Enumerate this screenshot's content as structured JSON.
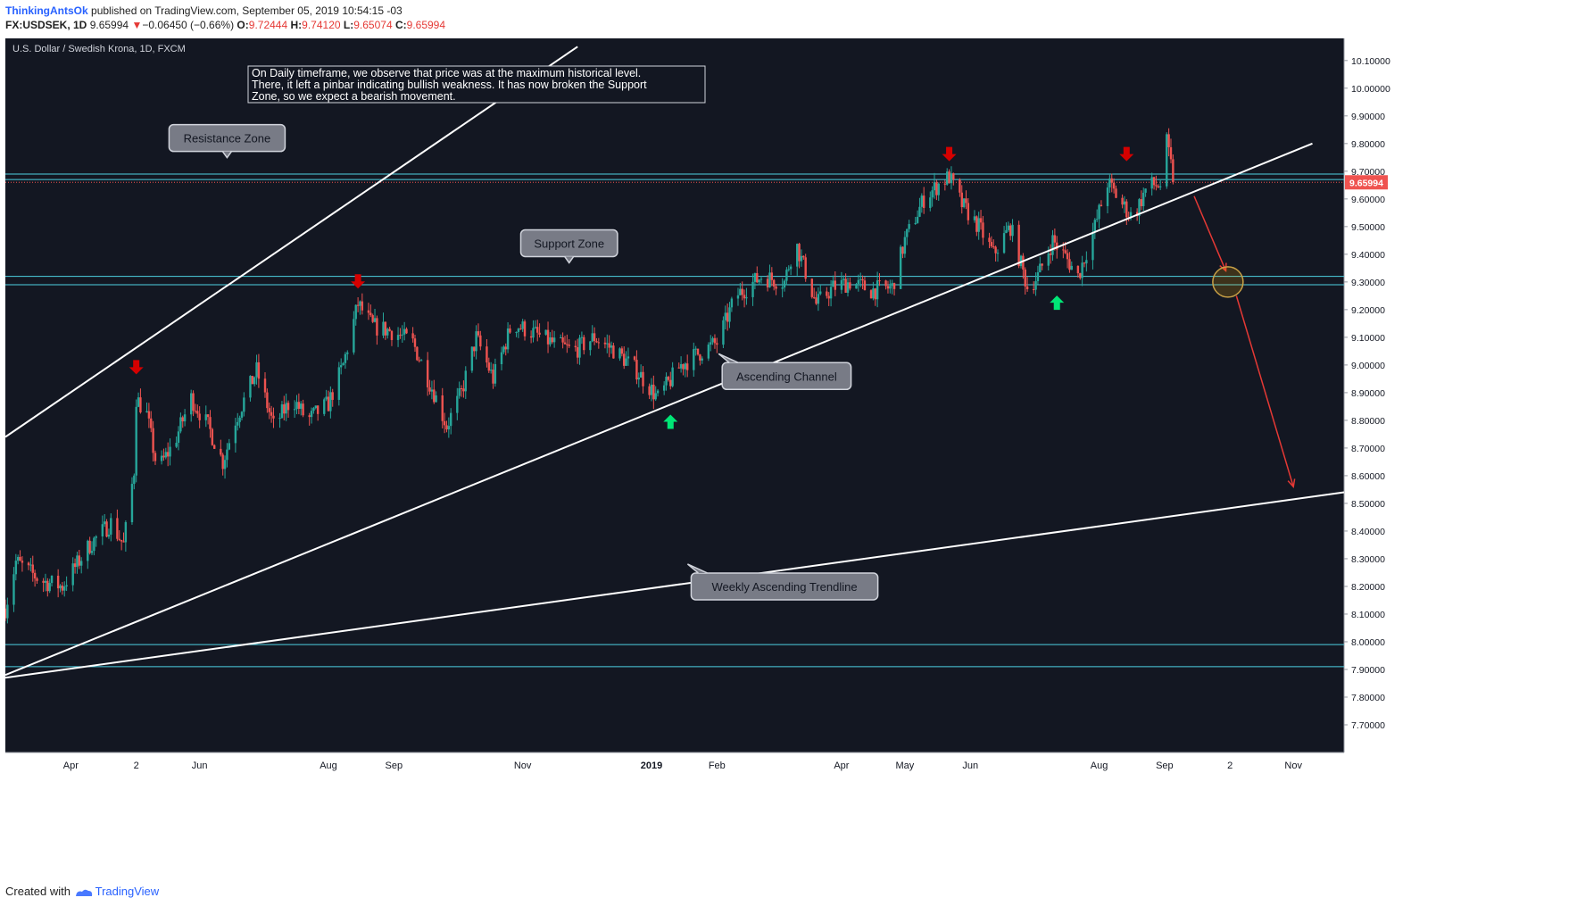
{
  "header": {
    "author": "ThinkingAntsOk",
    "published": "published on TradingView.com, September 05, 2019 10:54:15 -03",
    "symbol": "FX:USDSEK, 1D",
    "last": "9.65994",
    "change_arrow": "▼",
    "change": "−0.06450 (−0.66%)",
    "o_label": "O:",
    "o_val": "9.72444",
    "h_label": "H:",
    "h_val": "9.74120",
    "l_label": "L:",
    "l_val": "9.65074",
    "c_label": "C:",
    "c_val": "9.65994"
  },
  "footer": {
    "created_with": "Created with",
    "brand": "TradingView"
  },
  "colors": {
    "background": "#131722",
    "bull": "#26a69a",
    "bear": "#ef5350",
    "zone_line": "#4dd0e1",
    "channel_line": "#ffffff",
    "down_arrow": "#d50000",
    "up_arrow": "#00e676",
    "price_tag": "#ef5350"
  },
  "chart_data": {
    "type": "candlestick",
    "instrument_title": "U.S. Dollar / Swedish Krona, 1D, FXCM",
    "note": "On Daily timeframe, we observe that price was at the maximum historical level. There, it left a pinbar indicating bullish weakness. It has now broken the Support Zone, so we expect a bearish movement.",
    "note_lines": [
      "On Daily timeframe, we observe that price was at the maximum historical level.",
      "There, it left a pinbar indicating bullish weakness. It has now broken the Support",
      "Zone, so we expect a bearish movement."
    ],
    "ylim": [
      7.6,
      10.18
    ],
    "y_ticks": [
      "10.10000",
      "10.00000",
      "9.90000",
      "9.80000",
      "9.70000",
      "9.60000",
      "9.50000",
      "9.40000",
      "9.30000",
      "9.20000",
      "9.10000",
      "9.00000",
      "8.90000",
      "8.80000",
      "8.70000",
      "8.60000",
      "8.50000",
      "8.40000",
      "8.30000",
      "8.20000",
      "8.10000",
      "8.00000",
      "7.90000",
      "7.80000",
      "7.70000"
    ],
    "x_start": "2018-03-01",
    "x_end": "2019-11-25",
    "x_ticks": [
      {
        "label": "Apr",
        "date": "2018-04-01"
      },
      {
        "label": "2",
        "date": "2018-05-02"
      },
      {
        "label": "Jun",
        "date": "2018-06-01"
      },
      {
        "label": "Aug",
        "date": "2018-08-01"
      },
      {
        "label": "Sep",
        "date": "2018-09-01"
      },
      {
        "label": "Nov",
        "date": "2018-11-01"
      },
      {
        "label": "2019",
        "date": "2019-01-01"
      },
      {
        "label": "Feb",
        "date": "2019-02-01"
      },
      {
        "label": "Apr",
        "date": "2019-04-01"
      },
      {
        "label": "May",
        "date": "2019-05-01"
      },
      {
        "label": "Jun",
        "date": "2019-06-01"
      },
      {
        "label": "Aug",
        "date": "2019-08-01"
      },
      {
        "label": "Sep",
        "date": "2019-09-01"
      },
      {
        "label": "2",
        "date": "2019-10-02"
      },
      {
        "label": "Nov",
        "date": "2019-11-01"
      }
    ],
    "price_path": [
      {
        "date": "2018-03-01",
        "price": 8.12
      },
      {
        "date": "2018-03-06",
        "price": 8.29
      },
      {
        "date": "2018-03-18",
        "price": 8.22
      },
      {
        "date": "2018-03-28",
        "price": 8.2
      },
      {
        "date": "2018-04-10",
        "price": 8.35
      },
      {
        "date": "2018-04-20",
        "price": 8.43
      },
      {
        "date": "2018-04-26",
        "price": 8.35
      },
      {
        "date": "2018-05-01",
        "price": 8.62
      },
      {
        "date": "2018-05-02",
        "price": 8.88
      },
      {
        "date": "2018-05-07",
        "price": 8.82
      },
      {
        "date": "2018-05-12",
        "price": 8.62
      },
      {
        "date": "2018-05-20",
        "price": 8.72
      },
      {
        "date": "2018-05-28",
        "price": 8.88
      },
      {
        "date": "2018-06-05",
        "price": 8.78
      },
      {
        "date": "2018-06-12",
        "price": 8.65
      },
      {
        "date": "2018-06-18",
        "price": 8.8
      },
      {
        "date": "2018-06-28",
        "price": 8.98
      },
      {
        "date": "2018-07-06",
        "price": 8.78
      },
      {
        "date": "2018-07-15",
        "price": 8.88
      },
      {
        "date": "2018-07-22",
        "price": 8.8
      },
      {
        "date": "2018-08-01",
        "price": 8.86
      },
      {
        "date": "2018-08-08",
        "price": 9.0
      },
      {
        "date": "2018-08-15",
        "price": 9.22
      },
      {
        "date": "2018-08-22",
        "price": 9.14
      },
      {
        "date": "2018-09-01",
        "price": 9.12
      },
      {
        "date": "2018-09-10",
        "price": 9.08
      },
      {
        "date": "2018-09-20",
        "price": 8.9
      },
      {
        "date": "2018-09-26",
        "price": 8.78
      },
      {
        "date": "2018-10-03",
        "price": 8.9
      },
      {
        "date": "2018-10-10",
        "price": 9.1
      },
      {
        "date": "2018-10-18",
        "price": 8.95
      },
      {
        "date": "2018-10-27",
        "price": 9.15
      },
      {
        "date": "2018-11-05",
        "price": 9.12
      },
      {
        "date": "2018-11-15",
        "price": 9.08
      },
      {
        "date": "2018-11-25",
        "price": 9.05
      },
      {
        "date": "2018-12-05",
        "price": 9.1
      },
      {
        "date": "2018-12-15",
        "price": 9.05
      },
      {
        "date": "2018-12-25",
        "price": 8.98
      },
      {
        "date": "2019-01-04",
        "price": 8.88
      },
      {
        "date": "2019-01-15",
        "price": 9.0
      },
      {
        "date": "2019-01-25",
        "price": 9.05
      },
      {
        "date": "2019-02-01",
        "price": 9.08
      },
      {
        "date": "2019-02-10",
        "price": 9.25
      },
      {
        "date": "2019-02-22",
        "price": 9.32
      },
      {
        "date": "2019-03-05",
        "price": 9.3
      },
      {
        "date": "2019-03-10",
        "price": 9.45
      },
      {
        "date": "2019-03-20",
        "price": 9.22
      },
      {
        "date": "2019-03-28",
        "price": 9.28
      },
      {
        "date": "2019-04-05",
        "price": 9.3
      },
      {
        "date": "2019-04-15",
        "price": 9.27
      },
      {
        "date": "2019-04-25",
        "price": 9.28
      },
      {
        "date": "2019-05-01",
        "price": 9.45
      },
      {
        "date": "2019-05-10",
        "price": 9.6
      },
      {
        "date": "2019-05-18",
        "price": 9.66
      },
      {
        "date": "2019-05-22",
        "price": 9.68
      },
      {
        "date": "2019-05-28",
        "price": 9.58
      },
      {
        "date": "2019-06-05",
        "price": 9.5
      },
      {
        "date": "2019-06-12",
        "price": 9.4
      },
      {
        "date": "2019-06-20",
        "price": 9.5
      },
      {
        "date": "2019-06-28",
        "price": 9.28
      },
      {
        "date": "2019-07-03",
        "price": 9.32
      },
      {
        "date": "2019-07-10",
        "price": 9.45
      },
      {
        "date": "2019-07-17",
        "price": 9.38
      },
      {
        "date": "2019-07-22",
        "price": 9.32
      },
      {
        "date": "2019-07-30",
        "price": 9.5
      },
      {
        "date": "2019-08-05",
        "price": 9.66
      },
      {
        "date": "2019-08-12",
        "price": 9.58
      },
      {
        "date": "2019-08-17",
        "price": 9.53
      },
      {
        "date": "2019-08-24",
        "price": 9.65
      },
      {
        "date": "2019-08-30",
        "price": 9.65
      },
      {
        "date": "2019-09-02",
        "price": 9.8
      },
      {
        "date": "2019-09-04",
        "price": 9.72
      },
      {
        "date": "2019-09-05",
        "price": 9.66
      }
    ],
    "horizontal_lines": [
      9.69,
      9.67,
      9.32,
      9.29,
      7.99,
      7.91
    ],
    "last_price": 9.65994,
    "last_price_label": "9.65994",
    "trendlines": [
      {
        "name": "channel-upper",
        "from": {
          "date": "2018-03-01",
          "price": 8.74
        },
        "to": {
          "date": "2018-11-27",
          "price": 10.15
        }
      },
      {
        "name": "channel-lower",
        "from": {
          "date": "2018-03-01",
          "price": 7.88
        },
        "to": {
          "date": "2019-11-10",
          "price": 9.8
        }
      },
      {
        "name": "weekly-trendline",
        "from": {
          "date": "2018-03-01",
          "price": 7.87
        },
        "to": {
          "date": "2019-11-25",
          "price": 8.54
        }
      }
    ],
    "down_arrows": [
      {
        "date": "2018-05-02",
        "price": 8.95
      },
      {
        "date": "2018-08-15",
        "price": 9.26
      },
      {
        "date": "2019-05-22",
        "price": 9.72
      },
      {
        "date": "2019-08-14",
        "price": 9.72
      }
    ],
    "up_arrows": [
      {
        "date": "2019-01-10",
        "price": 8.84
      },
      {
        "date": "2019-07-12",
        "price": 9.27
      }
    ],
    "projection": [
      {
        "date": "2019-09-15",
        "price": 9.61
      },
      {
        "date": "2019-09-30",
        "price": 9.34
      },
      {
        "date": "2019-10-05",
        "price": 9.25
      },
      {
        "date": "2019-11-01",
        "price": 8.56
      }
    ],
    "target_circle": {
      "date": "2019-10-01",
      "price": 9.3
    },
    "callouts": [
      {
        "text": "Resistance Zone",
        "date": "2018-06-14",
        "price": 9.82,
        "pointer": "down"
      },
      {
        "text": "Support Zone",
        "date": "2018-11-23",
        "price": 9.44,
        "pointer": "down"
      },
      {
        "text": "Ascending Channel",
        "date": "2019-03-06",
        "price": 8.96,
        "pointer": "up"
      },
      {
        "text": "Weekly Ascending Trendline",
        "date": "2019-03-05",
        "price": 8.2,
        "pointer": "up"
      }
    ]
  }
}
